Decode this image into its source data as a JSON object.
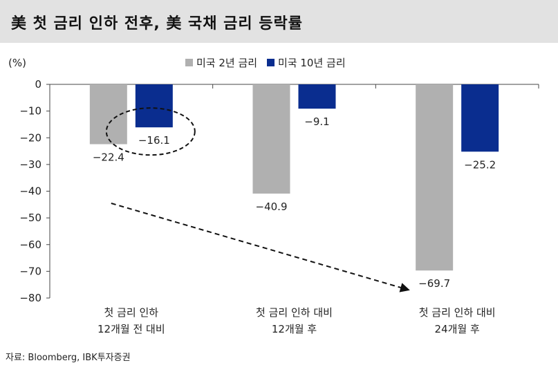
{
  "title": "美 첫 금리 인하 전후, 美 국채 금리 등락률",
  "source": "자료: Bloomberg, IBK투자증권",
  "chart_data": {
    "type": "bar",
    "unit_label": "(%)",
    "categories": [
      [
        "첫 금리 인하",
        "12개월 전 대비"
      ],
      [
        "첫 금리 인하 대비",
        "12개월 후"
      ],
      [
        "첫 금리 인하 대비",
        "24개월 후"
      ]
    ],
    "series": [
      {
        "name": "미국 2년 금리",
        "color": "#b0b0b0",
        "values": [
          -22.4,
          -40.9,
          -69.7
        ],
        "labels": [
          "-22.4",
          "-40.9",
          "-69.7"
        ]
      },
      {
        "name": "미국 10년 금리",
        "color": "#0a2d8f",
        "values": [
          -16.1,
          -9.1,
          -25.2
        ],
        "labels": [
          "-16.1",
          "-9.1",
          "-25.2"
        ]
      }
    ],
    "ylim": [
      -80,
      0
    ],
    "yticks": [
      0,
      -10,
      -20,
      -30,
      -40,
      -50,
      -60,
      -70,
      -80
    ],
    "legend_position": "top",
    "grid": false,
    "annotations": {
      "circle_highlight": {
        "series": 1,
        "category": 0
      },
      "dashed_arrow": {
        "from_category": 0,
        "to_category": 2,
        "series": 0,
        "description": "downward trend"
      }
    }
  }
}
